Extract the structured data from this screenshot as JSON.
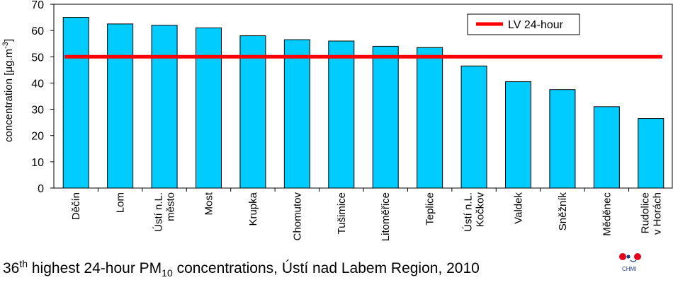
{
  "chart_data": {
    "type": "bar",
    "categories": [
      [
        "Děčín"
      ],
      [
        "Lom"
      ],
      [
        "Ústí n.L.",
        "město"
      ],
      [
        "Most"
      ],
      [
        "Krupka"
      ],
      [
        "Chomutov"
      ],
      [
        "Tušimice"
      ],
      [
        "Litoměřice"
      ],
      [
        "Teplice"
      ],
      [
        "Ústí n.L.",
        "Kočkov"
      ],
      [
        "Valdek"
      ],
      [
        "Sněžník"
      ],
      [
        "Měděnec"
      ],
      [
        "Rudolice",
        "v Horách"
      ]
    ],
    "values": [
      65,
      62.5,
      62,
      61,
      58,
      56.5,
      56,
      54,
      53.5,
      46.5,
      40.5,
      37.5,
      31,
      26.5
    ],
    "bar_color": "#00ccff",
    "limit_line": {
      "name": "LV 24-hour",
      "value": 50,
      "color": "#ff0000"
    },
    "ylim": [
      0,
      70
    ],
    "yticks": [
      0,
      10,
      20,
      30,
      40,
      50,
      60,
      70
    ],
    "ylabel": "concentration [μg.m",
    "ylabel_sup": "-3",
    "ylabel_end": "]",
    "grid": false,
    "legend_position": "top-right"
  },
  "caption": {
    "pre": "36",
    "sup": "th",
    "mid": " highest 24-hour PM",
    "sub": "10",
    "post": " concentrations, Ústí nad Labem Region, 2010"
  },
  "logo": {
    "text": "CHMI"
  }
}
